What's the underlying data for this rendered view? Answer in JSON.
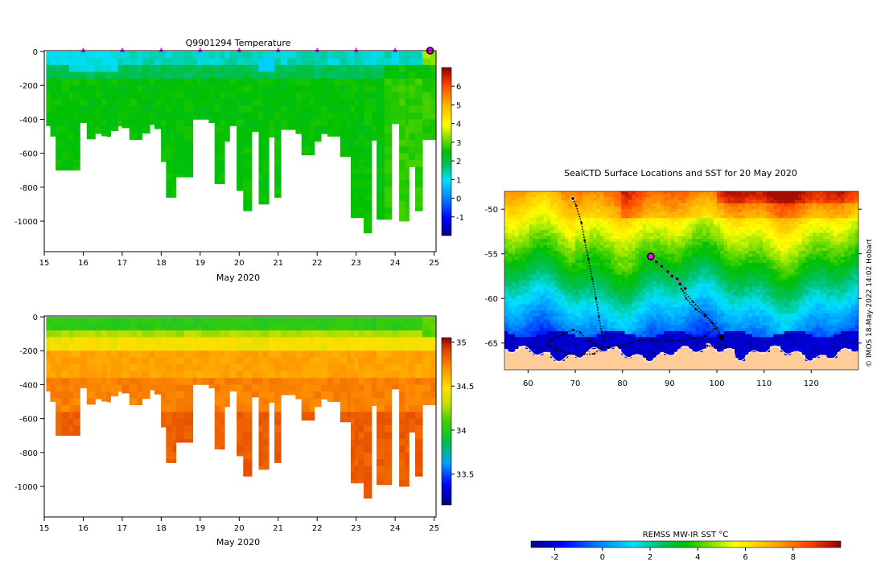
{
  "chart_data": [
    {
      "id": "temperature-section",
      "type": "heatmap",
      "title": "Q9901294  Temperature",
      "xlabel": "May 2020",
      "ylabel": "",
      "x_ticks": [
        15,
        16,
        17,
        18,
        19,
        20,
        21,
        22,
        23,
        24,
        25
      ],
      "y_ticks": [
        0,
        -200,
        -400,
        -600,
        -800,
        -1000
      ],
      "xlim": [
        15,
        25.05
      ],
      "ylim": [
        -1180,
        5
      ],
      "colorbar": {
        "min": -2,
        "max": 7,
        "ticks": [
          6,
          5,
          4,
          3,
          2,
          1,
          0,
          -1
        ]
      },
      "surface_marker_days": [
        16,
        17,
        18,
        19,
        20,
        21,
        22,
        23,
        24
      ],
      "latest_profile_day": 25
    },
    {
      "id": "salinity-section",
      "type": "heatmap",
      "title": "",
      "xlabel": "May 2020",
      "ylabel": "",
      "x_ticks": [
        15,
        16,
        17,
        18,
        19,
        20,
        21,
        22,
        23,
        24,
        25
      ],
      "y_ticks": [
        0,
        -200,
        -400,
        -600,
        -800,
        -1000
      ],
      "xlim": [
        15,
        25.05
      ],
      "ylim": [
        -1180,
        5
      ],
      "colorbar": {
        "min": 33.15,
        "max": 35.05,
        "ticks": [
          35,
          34.5,
          34,
          33.5
        ]
      }
    },
    {
      "id": "sst-map",
      "type": "heatmap",
      "title": "SealCTD Surface Locations and SST for 20 May 2020",
      "xlabel": "",
      "ylabel": "",
      "x_ticks": [
        60,
        70,
        80,
        90,
        100,
        110,
        120
      ],
      "y_ticks": [
        -50,
        -55,
        -60,
        -65
      ],
      "xlim": [
        55,
        130
      ],
      "ylim": [
        -68,
        -48
      ],
      "credit": "© IMOS 18-May-2022 14:02 Hobart",
      "colorbar_title": "REMSS MW-IR SST °C",
      "colorbar": {
        "min": -3,
        "max": 10,
        "ticks": [
          -2,
          0,
          2,
          4,
          6,
          8
        ]
      },
      "track_black": [
        [
          69.5,
          -48.8
        ],
        [
          70.2,
          -49.6
        ],
        [
          71.3,
          -51.5
        ],
        [
          72.0,
          -53.5
        ],
        [
          72.8,
          -55.6
        ],
        [
          73.6,
          -57.8
        ],
        [
          74.4,
          -60.0
        ],
        [
          75.0,
          -62.0
        ],
        [
          75.6,
          -63.8
        ],
        [
          76.2,
          -64.8
        ],
        [
          75.5,
          -65.6
        ],
        [
          74.0,
          -66.2
        ],
        [
          71.5,
          -66.3
        ],
        [
          69.0,
          -66.2
        ],
        [
          66.0,
          -65.8
        ],
        [
          64.0,
          -65.2
        ],
        [
          65.0,
          -64.6
        ],
        [
          67.5,
          -64.0
        ],
        [
          69.5,
          -63.5
        ],
        [
          71.0,
          -63.8
        ],
        [
          72.5,
          -64.6
        ],
        [
          74.5,
          -65.2
        ],
        [
          77.0,
          -65.5
        ],
        [
          80.0,
          -65.2
        ],
        [
          83.5,
          -64.7
        ],
        [
          86.5,
          -64.6
        ],
        [
          89.0,
          -64.8
        ],
        [
          92.0,
          -64.7
        ],
        [
          95.0,
          -64.5
        ],
        [
          97.5,
          -64.2
        ],
        [
          99.5,
          -63.4
        ],
        [
          99.0,
          -62.7
        ],
        [
          97.5,
          -62.0
        ],
        [
          95.5,
          -61.2
        ],
        [
          93.5,
          -60.0
        ],
        [
          92.5,
          -58.9
        ],
        [
          95.0,
          -60.4
        ],
        [
          97.5,
          -61.8
        ],
        [
          100.0,
          -63.3
        ],
        [
          101.0,
          -64.4
        ],
        [
          102.0,
          -65.3
        ],
        [
          100.5,
          -65.5
        ],
        [
          98.0,
          -65.3
        ]
      ],
      "track_recent": [
        [
          86.0,
          -55.3
        ],
        [
          87.2,
          -55.9
        ],
        [
          88.3,
          -56.4
        ],
        [
          89.6,
          -57.0
        ],
        [
          90.5,
          -57.5
        ],
        [
          91.6,
          -57.8
        ],
        [
          92.2,
          -58.4
        ],
        [
          93.3,
          -58.9
        ]
      ],
      "current_position": [
        86.0,
        -55.3
      ],
      "start_position": [
        69.5,
        -48.8
      ],
      "end_marker": [
        101.0,
        -64.4
      ]
    }
  ]
}
